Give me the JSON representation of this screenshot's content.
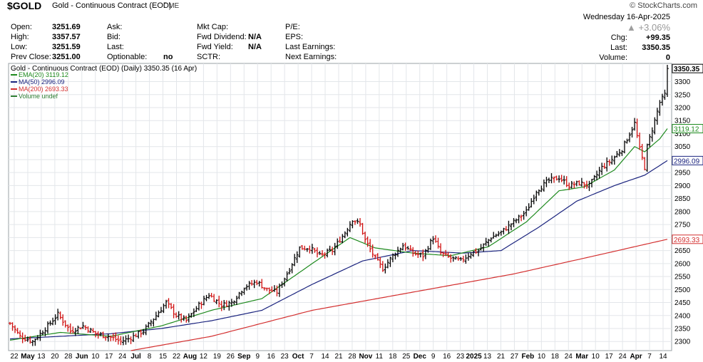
{
  "header": {
    "ticker": "$GOLD",
    "name": "Gold - Continuous Contract (EOD)",
    "exchange": "CME",
    "brand": "© StockCharts.com"
  },
  "info": {
    "left": [
      {
        "label": "Open:",
        "value": "3251.69"
      },
      {
        "label": "High:",
        "value": "3357.57"
      },
      {
        "label": "Low:",
        "value": "3251.59"
      },
      {
        "label": "Prev Close:",
        "value": "3251.00"
      }
    ],
    "middle": [
      {
        "label": "Ask:",
        "value": ""
      },
      {
        "label": "Bid:",
        "value": ""
      },
      {
        "label": "Last:",
        "value": ""
      },
      {
        "label": "Optionable:",
        "value": "no"
      }
    ],
    "right1": [
      {
        "label": "Mkt Cap:",
        "value": ""
      },
      {
        "label": "Fwd Dividend:",
        "value": "N/A"
      },
      {
        "label": "Fwd Yield:",
        "value": "N/A"
      },
      {
        "label": "SCTR:",
        "value": ""
      }
    ],
    "right2": [
      {
        "label": "P/E:"
      },
      {
        "label": "EPS:"
      },
      {
        "label": "Last Earnings:"
      },
      {
        "label": "Next Earnings:"
      }
    ],
    "date": "Wednesday  16-Apr-2025",
    "change_pct": "+3.06%",
    "change": {
      "label": "Chg:",
      "value": "+99.35"
    },
    "last": {
      "label": "Last:",
      "value": "3350.35"
    },
    "volume": {
      "label": "Volume:",
      "value": "0"
    }
  },
  "legend": {
    "title": "Gold - Continuous Contract (EOD) (Daily) 3350.35 (16 Apr)",
    "items": [
      {
        "text": "EMA(20) 3119.12",
        "color": "#1e8a1e"
      },
      {
        "text": "MA(50) 2996.09",
        "color": "#1a237e"
      },
      {
        "text": "MA(200) 2693.33",
        "color": "#d32f2f"
      },
      {
        "text": "Volume undef",
        "color": "#2e7d32"
      }
    ]
  },
  "chart_data": {
    "type": "ohlc",
    "y_ticks": [
      2300,
      2350,
      2400,
      2450,
      2500,
      2550,
      2600,
      2650,
      2700,
      2750,
      2800,
      2850,
      2900,
      2950,
      3000,
      3050,
      3100,
      3150,
      3200,
      3250,
      3300
    ],
    "ylim": [
      2265,
      3370
    ],
    "x_labels": [
      "22",
      "May",
      "13",
      "20",
      "28",
      "Jun",
      "10",
      "17",
      "24",
      "Jul",
      "8",
      "15",
      "22",
      "Aug",
      "12",
      "19",
      "26",
      "Sep",
      "9",
      "16",
      "23",
      "Oct",
      "7",
      "14",
      "21",
      "28",
      "Nov",
      "11",
      "18",
      "25",
      "Dec",
      "9",
      "16",
      "23",
      "2025",
      "13",
      "21",
      "27",
      "Feb",
      "10",
      "18",
      "24",
      "Mar",
      "10",
      "17",
      "24",
      "Apr",
      "7",
      "14"
    ],
    "price_labels": [
      {
        "text": "3350.35",
        "value": 3350.35,
        "color": "#000000",
        "highlight": true
      },
      {
        "text": "3119.12",
        "value": 3119.12,
        "color": "#1e8a1e"
      },
      {
        "text": "2996.09",
        "value": 2996.09,
        "color": "#1a237e"
      },
      {
        "text": "2693.33",
        "value": 2693.33,
        "color": "#d32f2f"
      }
    ],
    "price_keypoints": [
      [
        0,
        2370
      ],
      [
        4,
        2320
      ],
      [
        9,
        2300
      ],
      [
        15,
        2360
      ],
      [
        19,
        2405
      ],
      [
        24,
        2340
      ],
      [
        29,
        2360
      ],
      [
        34,
        2330
      ],
      [
        39,
        2320
      ],
      [
        44,
        2300
      ],
      [
        48,
        2315
      ],
      [
        53,
        2340
      ],
      [
        58,
        2400
      ],
      [
        62,
        2450
      ],
      [
        66,
        2400
      ],
      [
        70,
        2380
      ],
      [
        75,
        2440
      ],
      [
        79,
        2480
      ],
      [
        84,
        2440
      ],
      [
        88,
        2450
      ],
      [
        93,
        2510
      ],
      [
        98,
        2530
      ],
      [
        102,
        2500
      ],
      [
        106,
        2490
      ],
      [
        111,
        2580
      ],
      [
        115,
        2660
      ],
      [
        119,
        2660
      ],
      [
        123,
        2630
      ],
      [
        128,
        2650
      ],
      [
        133,
        2720
      ],
      [
        136,
        2770
      ],
      [
        139,
        2750
      ],
      [
        141,
        2690
      ],
      [
        145,
        2620
      ],
      [
        148,
        2580
      ],
      [
        152,
        2630
      ],
      [
        156,
        2670
      ],
      [
        160,
        2640
      ],
      [
        164,
        2630
      ],
      [
        168,
        2700
      ],
      [
        171,
        2640
      ],
      [
        175,
        2620
      ],
      [
        179,
        2610
      ],
      [
        183,
        2640
      ],
      [
        186,
        2650
      ],
      [
        191,
        2700
      ],
      [
        195,
        2720
      ],
      [
        200,
        2760
      ],
      [
        205,
        2800
      ],
      [
        209,
        2880
      ],
      [
        214,
        2920
      ],
      [
        218,
        2930
      ],
      [
        222,
        2900
      ],
      [
        226,
        2910
      ],
      [
        230,
        2900
      ],
      [
        235,
        2970
      ],
      [
        239,
        3000
      ],
      [
        243,
        3040
      ],
      [
        246,
        3100
      ],
      [
        248,
        3140
      ],
      [
        250,
        3040
      ],
      [
        252,
        2970
      ],
      [
        253,
        3050
      ],
      [
        256,
        3150
      ],
      [
        258,
        3220
      ],
      [
        260,
        3250
      ],
      [
        261,
        3350.35
      ]
    ],
    "ema20_points": [
      [
        0,
        2305
      ],
      [
        20,
        2335
      ],
      [
        40,
        2320
      ],
      [
        60,
        2360
      ],
      [
        80,
        2420
      ],
      [
        100,
        2465
      ],
      [
        120,
        2600
      ],
      [
        135,
        2700
      ],
      [
        145,
        2660
      ],
      [
        160,
        2640
      ],
      [
        175,
        2630
      ],
      [
        190,
        2665
      ],
      [
        205,
        2760
      ],
      [
        218,
        2880
      ],
      [
        228,
        2895
      ],
      [
        240,
        2960
      ],
      [
        248,
        3050
      ],
      [
        252,
        3030
      ],
      [
        258,
        3080
      ],
      [
        261,
        3119.12
      ]
    ],
    "ma50_points": [
      [
        0,
        2310
      ],
      [
        40,
        2330
      ],
      [
        60,
        2350
      ],
      [
        80,
        2380
      ],
      [
        100,
        2420
      ],
      [
        120,
        2520
      ],
      [
        140,
        2610
      ],
      [
        160,
        2650
      ],
      [
        180,
        2640
      ],
      [
        195,
        2650
      ],
      [
        210,
        2740
      ],
      [
        225,
        2840
      ],
      [
        240,
        2900
      ],
      [
        252,
        2940
      ],
      [
        261,
        2996.09
      ]
    ],
    "ma200_points": [
      [
        48,
        2265
      ],
      [
        80,
        2320
      ],
      [
        120,
        2420
      ],
      [
        160,
        2490
      ],
      [
        200,
        2560
      ],
      [
        230,
        2625
      ],
      [
        261,
        2693.33
      ]
    ]
  }
}
